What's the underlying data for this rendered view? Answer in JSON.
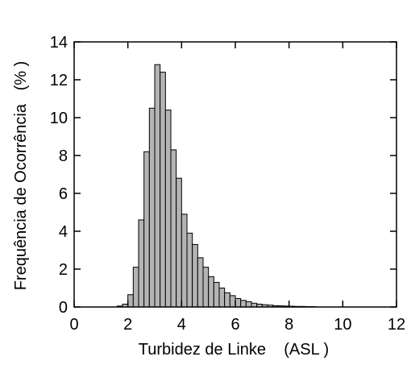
{
  "chart_data": {
    "type": "histogram",
    "x_label": "Turbidez de Linke    (ASL )",
    "y_label": "Frequência de Ocorrência   (% )",
    "bins": [
      1.6,
      1.8,
      2.0,
      2.2,
      2.4,
      2.6,
      2.8,
      3.0,
      3.2,
      3.4,
      3.6,
      3.8,
      4.0,
      4.2,
      4.4,
      4.6,
      4.8,
      5.0,
      5.2,
      5.4,
      5.6,
      5.8,
      6.0,
      6.2,
      6.4,
      6.6,
      6.8,
      7.0,
      7.2,
      7.4,
      7.6,
      7.8,
      8.0,
      8.2,
      8.4,
      8.6,
      8.8,
      9.0
    ],
    "values": [
      0.05,
      0.15,
      0.65,
      2.1,
      4.6,
      8.2,
      10.5,
      12.8,
      12.4,
      10.4,
      8.3,
      6.8,
      4.9,
      3.9,
      3.3,
      2.6,
      2.1,
      1.6,
      1.3,
      1.0,
      0.75,
      0.6,
      0.45,
      0.35,
      0.28,
      0.2,
      0.15,
      0.12,
      0.1,
      0.07,
      0.06,
      0.05,
      0.04,
      0.03,
      0.03,
      0.02,
      0.02
    ],
    "color": "#b4b4b4",
    "xlim": [
      0,
      12
    ],
    "xticks": [
      0,
      2,
      4,
      6,
      8,
      10,
      12
    ],
    "ylim": [
      0,
      14
    ],
    "yticks": [
      0,
      2,
      4,
      6,
      8,
      10,
      12,
      14
    ]
  }
}
